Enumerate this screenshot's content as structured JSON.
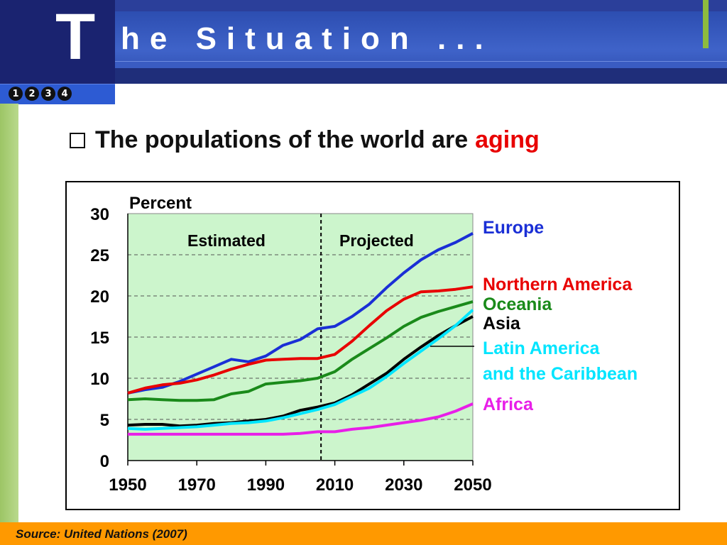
{
  "slide": {
    "title_initial": "T",
    "title_rest": "he Situation ...",
    "nav_numbers": [
      "1",
      "2",
      "3",
      "4"
    ],
    "bullet_text": "The populations of the world are",
    "bullet_highlight": "aging",
    "source": "Source: United Nations (2007)"
  },
  "colors": {
    "plot_bg": "#ccf5cc",
    "footer": "#ff9900",
    "highlight": "#e80000"
  },
  "chart_data": {
    "type": "line",
    "ylabel": "Percent",
    "ylim": [
      0,
      30
    ],
    "yticks": [
      0,
      5,
      10,
      15,
      20,
      25,
      30
    ],
    "xlim": [
      1950,
      2050
    ],
    "xticks": [
      1950,
      1970,
      1990,
      2010,
      2030,
      2050
    ],
    "grid": "horizontal dashed",
    "divider_year": 2006,
    "region_labels": [
      "Estimated",
      "Projected"
    ],
    "x": [
      1950,
      1955,
      1960,
      1965,
      1970,
      1975,
      1980,
      1985,
      1990,
      1995,
      2000,
      2005,
      2010,
      2015,
      2020,
      2025,
      2030,
      2035,
      2040,
      2045,
      2050
    ],
    "series": [
      {
        "name": "Europe",
        "color": "#1a2fd6",
        "label_lines": [
          "Europe"
        ],
        "values": [
          8.2,
          8.6,
          8.9,
          9.6,
          10.5,
          11.4,
          12.3,
          12.0,
          12.7,
          14.0,
          14.7,
          16.0,
          16.3,
          17.5,
          19.0,
          21.0,
          22.8,
          24.4,
          25.6,
          26.5,
          27.6
        ]
      },
      {
        "name": "Northern America",
        "color": "#e80000",
        "label_lines": [
          "Northern America"
        ],
        "values": [
          8.2,
          8.8,
          9.2,
          9.4,
          9.8,
          10.4,
          11.1,
          11.7,
          12.2,
          12.3,
          12.4,
          12.4,
          12.9,
          14.5,
          16.4,
          18.2,
          19.6,
          20.5,
          20.6,
          20.8,
          21.1
        ]
      },
      {
        "name": "Oceania",
        "color": "#1a8a1a",
        "label_lines": [
          "Oceania"
        ],
        "values": [
          7.4,
          7.5,
          7.4,
          7.3,
          7.3,
          7.4,
          8.1,
          8.4,
          9.3,
          9.5,
          9.7,
          10.0,
          10.8,
          12.3,
          13.6,
          14.9,
          16.3,
          17.4,
          18.1,
          18.7,
          19.3
        ]
      },
      {
        "name": "Asia",
        "color": "#000000",
        "label_lines": [
          "Asia"
        ],
        "values": [
          4.3,
          4.4,
          4.4,
          4.2,
          4.3,
          4.5,
          4.6,
          4.8,
          5.0,
          5.4,
          6.1,
          6.5,
          7.0,
          8.0,
          9.3,
          10.6,
          12.3,
          13.8,
          15.2,
          16.4,
          17.5
        ]
      },
      {
        "name": "Latin America and the Caribbean",
        "color": "#00e5ff",
        "label_lines": [
          "Latin America",
          "and the Caribbean"
        ],
        "values": [
          3.9,
          3.8,
          3.9,
          4.0,
          4.1,
          4.3,
          4.5,
          4.6,
          4.8,
          5.2,
          5.7,
          6.2,
          6.8,
          7.8,
          8.8,
          10.2,
          11.8,
          13.3,
          14.8,
          16.4,
          18.3
        ]
      },
      {
        "name": "Africa",
        "color": "#e81ee8",
        "label_lines": [
          "Africa"
        ],
        "values": [
          3.2,
          3.2,
          3.2,
          3.2,
          3.2,
          3.2,
          3.2,
          3.2,
          3.2,
          3.2,
          3.3,
          3.5,
          3.5,
          3.8,
          4.0,
          4.3,
          4.6,
          4.9,
          5.3,
          6.0,
          6.9
        ]
      }
    ]
  }
}
